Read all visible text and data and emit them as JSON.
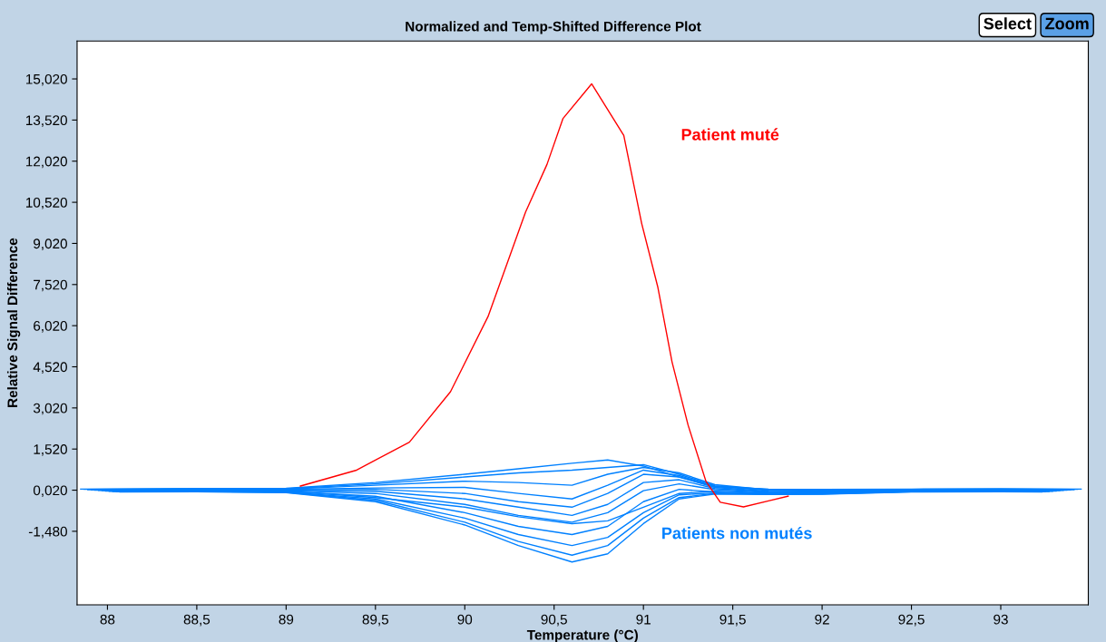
{
  "chart_data": {
    "type": "line",
    "title": "Normalized and Temp-Shifted Difference Plot",
    "xlabel": "Temperature (°C)",
    "ylabel": "Relative Signal Difference",
    "xlim": [
      87.83,
      93.49
    ],
    "ylim": [
      -4.16,
      16.4
    ],
    "xticks": [
      88,
      {
        "value": 88.5,
        "label": "88,5"
      },
      89,
      {
        "value": 89.5,
        "label": "89,5"
      },
      90,
      {
        "value": 90.5,
        "label": "90,5"
      },
      91,
      {
        "value": 91.5,
        "label": "91,5"
      },
      92,
      {
        "value": 92.5,
        "label": "92,5"
      },
      93
    ],
    "yticks": [
      {
        "value": 15.02,
        "label": "15,020"
      },
      {
        "value": 13.52,
        "label": "13,520"
      },
      {
        "value": 12.02,
        "label": "12,020"
      },
      {
        "value": 10.52,
        "label": "10,520"
      },
      {
        "value": 9.02,
        "label": "9,020"
      },
      {
        "value": 7.52,
        "label": "7,520"
      },
      {
        "value": 6.02,
        "label": "6,020"
      },
      {
        "value": 4.52,
        "label": "4,520"
      },
      {
        "value": 3.02,
        "label": "3,020"
      },
      {
        "value": 1.52,
        "label": "1,520"
      },
      {
        "value": 0.02,
        "label": "0,020"
      },
      {
        "value": -1.48,
        "label": "-1,480"
      }
    ],
    "series": [
      {
        "color": "#0080ff",
        "x": [
          87.85,
          88.5,
          89.0,
          89.5,
          90.0,
          90.3,
          90.6,
          90.8,
          91.0,
          91.2,
          91.4,
          91.7,
          92.0,
          92.5,
          93.0,
          93.45
        ],
        "values": [
          0.06,
          0.08,
          0.09,
          0.3,
          0.6,
          0.8,
          1.0,
          1.12,
          0.9,
          0.5,
          0.14,
          0.06,
          0.05,
          0.06,
          0.07,
          0.06
        ]
      },
      {
        "color": "#0080ff",
        "x": [
          87.87,
          88.5,
          89.0,
          89.5,
          90.0,
          90.3,
          90.6,
          90.8,
          91.0,
          91.2,
          91.4,
          91.7,
          92.0,
          92.5,
          93.0,
          93.43
        ],
        "values": [
          0.05,
          0.07,
          0.07,
          0.25,
          0.5,
          0.65,
          0.75,
          0.85,
          0.95,
          0.6,
          0.18,
          0.05,
          0.03,
          0.05,
          0.06,
          0.05
        ]
      },
      {
        "color": "#0080ff",
        "x": [
          87.89,
          88.5,
          89.0,
          89.5,
          90.0,
          90.3,
          90.6,
          90.8,
          91.0,
          91.2,
          91.4,
          91.7,
          92.0,
          92.5,
          93.0,
          93.41
        ],
        "values": [
          0.04,
          0.05,
          0.06,
          0.2,
          0.35,
          0.3,
          0.2,
          0.6,
          0.85,
          0.65,
          0.22,
          0.03,
          0.01,
          0.04,
          0.05,
          0.04
        ]
      },
      {
        "color": "#0080ff",
        "x": [
          87.91,
          88.5,
          89.0,
          89.5,
          90.0,
          90.3,
          90.6,
          90.8,
          91.0,
          91.2,
          91.4,
          91.7,
          92.0,
          92.5,
          93.0,
          93.39
        ],
        "values": [
          0.03,
          0.04,
          0.05,
          0.1,
          0.12,
          -0.1,
          -0.3,
          0.2,
          0.75,
          0.55,
          0.16,
          0.01,
          -0.01,
          0.03,
          0.04,
          0.03
        ]
      },
      {
        "color": "#0080ff",
        "x": [
          87.93,
          88.5,
          89.0,
          89.5,
          90.0,
          90.3,
          90.6,
          90.8,
          91.0,
          91.2,
          91.4,
          91.7,
          92.0,
          92.5,
          93.0,
          93.37
        ],
        "values": [
          0.02,
          0.03,
          0.03,
          0.05,
          -0.1,
          -0.4,
          -0.6,
          -0.1,
          0.6,
          0.5,
          0.12,
          -0.02,
          -0.03,
          0.02,
          0.03,
          0.02
        ]
      },
      {
        "color": "#0080ff",
        "x": [
          87.95,
          88.5,
          89.0,
          89.5,
          90.0,
          90.3,
          90.6,
          90.8,
          91.0,
          91.2,
          91.4,
          91.7,
          92.0,
          92.5,
          93.0,
          93.35
        ],
        "values": [
          0.01,
          0.02,
          0.02,
          -0.02,
          -0.3,
          -0.6,
          -0.9,
          -0.5,
          0.3,
          0.4,
          0.08,
          -0.04,
          -0.05,
          0.01,
          0.02,
          0.01
        ]
      },
      {
        "color": "#0080ff",
        "x": [
          87.97,
          88.5,
          89.0,
          89.5,
          90.0,
          90.3,
          90.6,
          90.8,
          91.0,
          91.2,
          91.4,
          91.7,
          92.0,
          92.5,
          93.0,
          93.33
        ],
        "values": [
          0.0,
          0.01,
          0.0,
          -0.1,
          -0.5,
          -0.9,
          -1.15,
          -0.8,
          0.0,
          0.25,
          0.04,
          -0.06,
          -0.07,
          0.0,
          0.01,
          0.0
        ]
      },
      {
        "color": "#0080ff",
        "x": [
          87.99,
          88.5,
          89.0,
          89.5,
          90.0,
          90.3,
          90.6,
          90.8,
          91.0,
          91.2,
          91.4,
          91.7,
          92.0,
          92.5,
          93.0,
          93.31
        ],
        "values": [
          -0.01,
          0.0,
          -0.01,
          -0.25,
          -0.6,
          -0.95,
          -1.2,
          -1.1,
          -0.6,
          -0.1,
          -0.02,
          -0.08,
          -0.09,
          -0.01,
          0.0,
          -0.01
        ]
      },
      {
        "color": "#0080ff",
        "x": [
          88.01,
          88.5,
          89.0,
          89.5,
          90.0,
          90.3,
          90.6,
          90.8,
          91.0,
          91.2,
          91.4,
          91.7,
          92.0,
          92.5,
          93.0,
          93.29
        ],
        "values": [
          -0.02,
          -0.01,
          -0.03,
          -0.2,
          -0.8,
          -1.3,
          -1.6,
          -1.3,
          -0.4,
          0.05,
          -0.04,
          -0.1,
          -0.1,
          -0.02,
          -0.01,
          -0.02
        ]
      },
      {
        "color": "#0080ff",
        "x": [
          88.03,
          88.5,
          89.0,
          89.5,
          90.0,
          90.3,
          90.6,
          90.8,
          91.0,
          91.2,
          91.4,
          91.7,
          92.0,
          92.5,
          93.0,
          93.27
        ],
        "values": [
          -0.03,
          -0.02,
          -0.05,
          -0.3,
          -1.0,
          -1.6,
          -2.0,
          -1.7,
          -0.8,
          -0.15,
          -0.08,
          -0.12,
          -0.11,
          -0.03,
          -0.02,
          -0.03
        ]
      },
      {
        "color": "#0080ff",
        "x": [
          88.05,
          88.5,
          89.0,
          89.5,
          90.0,
          90.3,
          90.6,
          90.8,
          91.0,
          91.2,
          91.4,
          91.7,
          92.0,
          92.5,
          93.0,
          93.25
        ],
        "values": [
          -0.04,
          -0.03,
          -0.06,
          -0.35,
          -1.15,
          -1.85,
          -2.35,
          -2.0,
          -1.0,
          -0.25,
          -0.1,
          -0.13,
          -0.12,
          -0.04,
          -0.03,
          -0.04
        ]
      },
      {
        "name": "Patients non mutés",
        "color": "#0080ff",
        "x": [
          88.07,
          88.5,
          89.0,
          89.5,
          90.0,
          90.3,
          90.6,
          90.8,
          91.0,
          91.2,
          91.4,
          91.7,
          92.0,
          92.5,
          93.0,
          93.23
        ],
        "values": [
          -0.05,
          -0.04,
          -0.07,
          -0.4,
          -1.25,
          -2.0,
          -2.6,
          -2.3,
          -1.2,
          -0.3,
          -0.12,
          -0.14,
          -0.13,
          -0.05,
          -0.04,
          -0.05
        ]
      },
      {
        "name": "Patient muté",
        "color": "#ff0000",
        "x": [
          89.08,
          89.39,
          89.69,
          89.92,
          90.13,
          90.34,
          90.46,
          90.55,
          90.71,
          90.89,
          90.99,
          91.08,
          91.16,
          91.25,
          91.35,
          91.43,
          91.56,
          91.7,
          91.81
        ],
        "values": [
          0.17,
          0.74,
          1.77,
          3.61,
          6.35,
          10.16,
          11.9,
          13.58,
          14.84,
          12.96,
          9.75,
          7.44,
          4.7,
          2.39,
          0.34,
          -0.42,
          -0.59,
          -0.37,
          -0.2
        ]
      }
    ],
    "annotations": [
      "Select",
      "Zoom"
    ],
    "grid": false,
    "marker": "none",
    "line_style": "solid"
  }
}
